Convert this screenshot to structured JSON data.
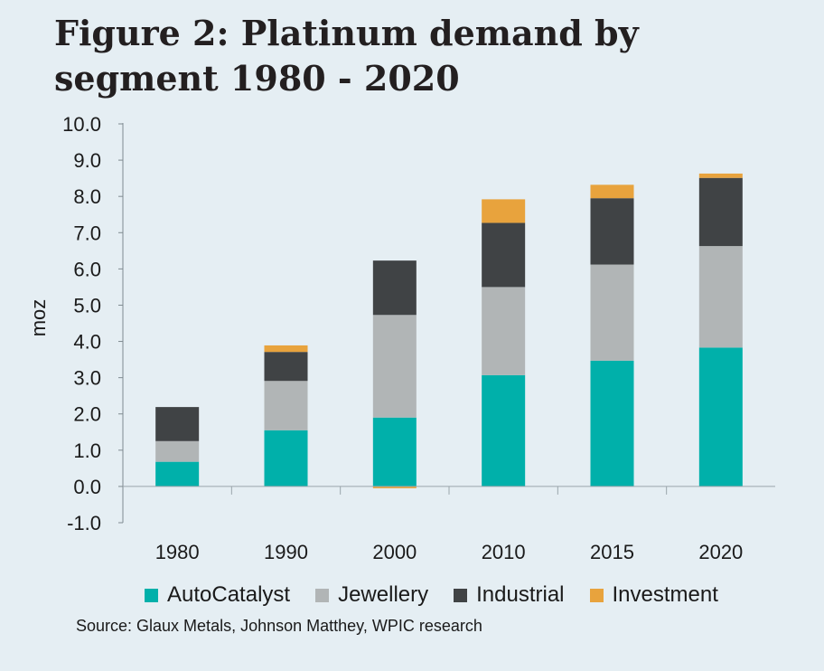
{
  "chart_data": {
    "type": "bar",
    "stacked": true,
    "title": "Figure 2: Platinum demand by segment 1980 - 2020",
    "ylabel": "moz",
    "xlabel": "",
    "ylim": [
      -1.0,
      10.0
    ],
    "yticks": [
      "10.0",
      "9.0",
      "8.0",
      "7.0",
      "6.0",
      "5.0",
      "4.0",
      "3.0",
      "2.0",
      "1.0",
      "0.0",
      "-1.0"
    ],
    "categories": [
      "1980",
      "1990",
      "2000",
      "2010",
      "2015",
      "2020"
    ],
    "series": [
      {
        "name": "AutoCatalyst",
        "color": "#00b0aa",
        "values": [
          0.68,
          1.55,
          1.9,
          3.07,
          3.47,
          3.83
        ]
      },
      {
        "name": "Jewellery",
        "color": "#b1b5b6",
        "values": [
          0.57,
          1.36,
          2.83,
          2.43,
          2.65,
          2.8
        ]
      },
      {
        "name": "Industrial",
        "color": "#404345",
        "values": [
          0.94,
          0.8,
          1.5,
          1.77,
          1.83,
          1.88
        ]
      },
      {
        "name": "Investment",
        "color": "#e8a33d",
        "values": [
          0.0,
          0.18,
          -0.05,
          0.65,
          0.37,
          0.12
        ]
      }
    ],
    "legend_position": "bottom",
    "grid": false
  },
  "source": "Source: Glaux Metals, Johnson Matthey, WPIC research"
}
